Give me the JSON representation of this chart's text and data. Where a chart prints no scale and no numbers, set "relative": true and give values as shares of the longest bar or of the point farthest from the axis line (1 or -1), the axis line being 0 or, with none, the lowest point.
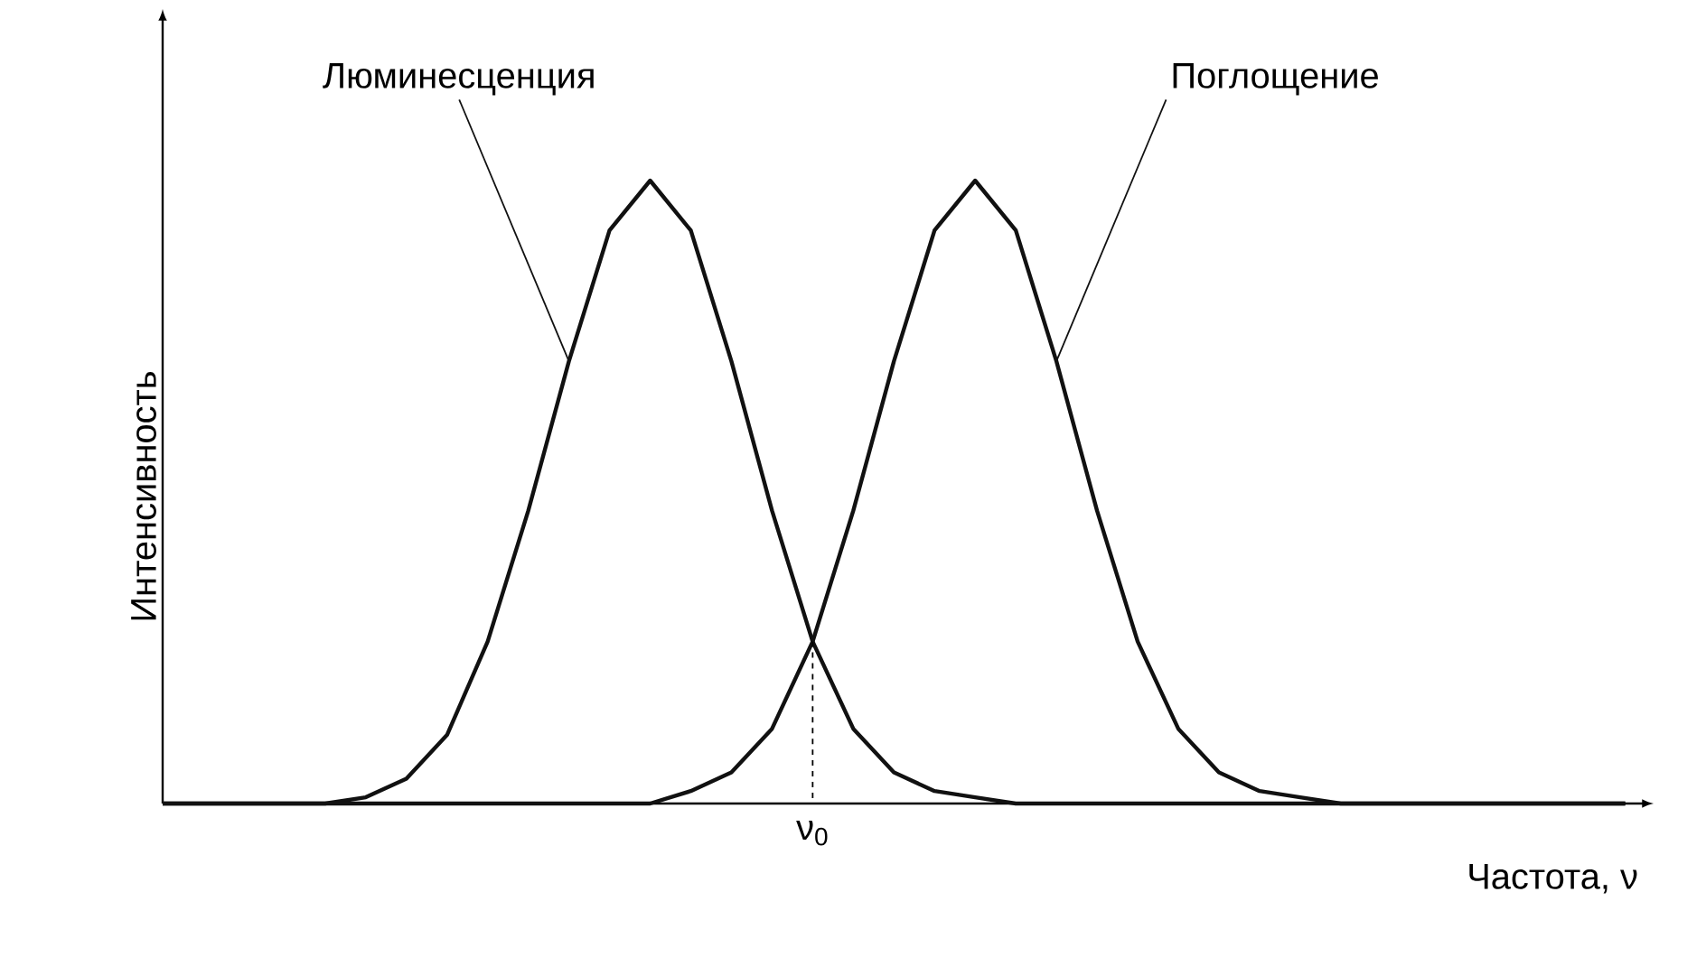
{
  "chart_data": {
    "type": "line",
    "relative": true,
    "xlabel": "Частота, ν",
    "ylabel": "Интенсивность",
    "categories": [
      null,
      null,
      null,
      null,
      null,
      null,
      null,
      null,
      null,
      null,
      null,
      null,
      null,
      null,
      null,
      null,
      null,
      null,
      null,
      null,
      null,
      null,
      null,
      null,
      null,
      null,
      null,
      null,
      null,
      null,
      null,
      null,
      null,
      null,
      null,
      null,
      null
    ],
    "series": [
      {
        "name": "Люминесценция",
        "color": "#111111",
        "values": [
          0,
          0,
          0,
          0,
          0,
          0.01,
          0.04,
          0.11,
          0.26,
          0.47,
          0.71,
          0.92,
          1,
          0.92,
          0.71,
          0.47,
          0.26,
          0.12,
          0.05,
          0.02,
          0.01,
          0,
          0,
          0,
          0,
          0,
          0,
          0,
          0,
          0,
          0,
          0,
          0,
          0,
          0,
          0,
          0
        ]
      },
      {
        "name": "Поглощение",
        "color": "#111111",
        "values": [
          0,
          0,
          0,
          0,
          0,
          0,
          0,
          0,
          0,
          0,
          0,
          0,
          0,
          0.02,
          0.05,
          0.12,
          0.26,
          0.47,
          0.71,
          0.92,
          1,
          0.92,
          0.71,
          0.47,
          0.26,
          0.12,
          0.05,
          0.02,
          0.01,
          0,
          0,
          0,
          0,
          0,
          0,
          0,
          0
        ]
      }
    ],
    "annotations": [
      "ν$_{0}$"
    ],
    "marker": "none",
    "line_style": "solid",
    "legend": false
  }
}
